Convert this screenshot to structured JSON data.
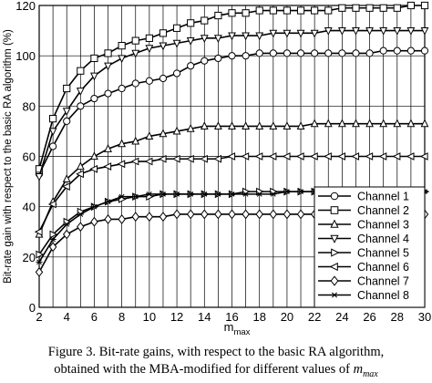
{
  "chart_data": {
    "type": "line",
    "xlabel": "m",
    "xlabel_sub": "max",
    "ylabel": "Bit-rate gain with respect to the basic RA algorithm (%)",
    "xlim": [
      2,
      30
    ],
    "ylim": [
      0,
      120
    ],
    "xticks": [
      "2",
      "4",
      "6",
      "8",
      "10",
      "12",
      "14",
      "16",
      "18",
      "20",
      "22",
      "24",
      "26",
      "28",
      "30"
    ],
    "yticks": [
      "0",
      "20",
      "40",
      "60",
      "80",
      "100",
      "120"
    ],
    "grid": true,
    "legend_position": "bottom-right",
    "series": [
      {
        "name": "Channel 1",
        "marker": "circle",
        "x": [
          2,
          3,
          4,
          5,
          6,
          7,
          8,
          9,
          10,
          11,
          12,
          13,
          14,
          15,
          16,
          17,
          18,
          19,
          20,
          21,
          22,
          23,
          24,
          25,
          26,
          27,
          28,
          29,
          30
        ],
        "values": [
          53,
          64,
          74,
          80,
          83,
          85,
          87,
          89,
          90,
          91,
          93,
          96,
          98,
          99,
          100,
          100,
          101,
          101,
          101,
          101,
          101,
          101,
          101,
          101,
          101,
          102,
          102,
          102,
          102
        ]
      },
      {
        "name": "Channel 2",
        "marker": "square",
        "x": [
          2,
          3,
          4,
          5,
          6,
          7,
          8,
          9,
          10,
          11,
          12,
          13,
          14,
          15,
          16,
          17,
          18,
          19,
          20,
          21,
          22,
          23,
          24,
          25,
          26,
          27,
          28,
          29,
          30
        ],
        "values": [
          55,
          75,
          87,
          94,
          99,
          101,
          104,
          106,
          107,
          109,
          111,
          113,
          114,
          116,
          117,
          117,
          118,
          118,
          118,
          118,
          118,
          118,
          119,
          119,
          119,
          119,
          119,
          120,
          120
        ]
      },
      {
        "name": "Channel 3",
        "marker": "triangle-up",
        "x": [
          2,
          3,
          4,
          5,
          6,
          7,
          8,
          9,
          10,
          11,
          12,
          13,
          14,
          15,
          16,
          17,
          18,
          19,
          20,
          21,
          22,
          23,
          24,
          25,
          26,
          27,
          28,
          29,
          30
        ],
        "values": [
          29,
          42,
          51,
          56,
          60,
          63,
          65,
          66,
          68,
          69,
          70,
          71,
          72,
          72,
          72,
          72,
          72,
          72,
          72,
          72,
          73,
          73,
          73,
          73,
          73,
          73,
          73,
          73,
          73
        ]
      },
      {
        "name": "Channel 4",
        "marker": "triangle-down",
        "x": [
          2,
          3,
          4,
          5,
          6,
          7,
          8,
          9,
          10,
          11,
          12,
          13,
          14,
          15,
          16,
          17,
          18,
          19,
          20,
          21,
          22,
          23,
          24,
          25,
          26,
          27,
          28,
          29,
          30
        ],
        "values": [
          52,
          70,
          78,
          86,
          92,
          96,
          99,
          101,
          103,
          104,
          105,
          106,
          107,
          107,
          108,
          108,
          108,
          109,
          109,
          109,
          109,
          110,
          110,
          110,
          110,
          110,
          110,
          110,
          110
        ]
      },
      {
        "name": "Channel 5",
        "marker": "triangle-right",
        "x": [
          2,
          3,
          4,
          5,
          6,
          7,
          8,
          9,
          10,
          11,
          12,
          13,
          14,
          15,
          16,
          17,
          18,
          19,
          20,
          21,
          22,
          23,
          24,
          25,
          26,
          27,
          28,
          29,
          30
        ],
        "values": [
          21,
          29,
          34,
          38,
          40,
          42,
          43,
          44,
          44,
          45,
          45,
          45,
          45,
          45,
          45,
          46,
          46,
          46,
          46,
          46,
          46,
          46,
          46,
          46,
          46,
          46,
          46,
          46,
          46
        ]
      },
      {
        "name": "Channel 6",
        "marker": "triangle-left",
        "x": [
          2,
          3,
          4,
          5,
          6,
          7,
          8,
          9,
          10,
          11,
          12,
          13,
          14,
          15,
          16,
          17,
          18,
          19,
          20,
          21,
          22,
          23,
          24,
          25,
          26,
          27,
          28,
          29,
          30
        ],
        "values": [
          30,
          41,
          48,
          53,
          55,
          56,
          57,
          58,
          58,
          59,
          59,
          59,
          59,
          59,
          60,
          60,
          60,
          60,
          60,
          60,
          60,
          60,
          60,
          60,
          60,
          60,
          60,
          60,
          60
        ]
      },
      {
        "name": "Channel 7",
        "marker": "diamond",
        "x": [
          2,
          3,
          4,
          5,
          6,
          7,
          8,
          9,
          10,
          11,
          12,
          13,
          14,
          15,
          16,
          17,
          18,
          19,
          20,
          21,
          22,
          23,
          24,
          25,
          26,
          27,
          28,
          29,
          30
        ],
        "values": [
          14,
          24,
          29,
          32,
          34,
          35,
          35,
          36,
          36,
          36,
          37,
          37,
          37,
          37,
          37,
          37,
          37,
          37,
          37,
          37,
          37,
          37,
          37,
          37,
          37,
          37,
          37,
          37,
          37
        ]
      },
      {
        "name": "Channel 8",
        "marker": "star",
        "x": [
          2,
          3,
          4,
          5,
          6,
          7,
          8,
          9,
          10,
          11,
          12,
          13,
          14,
          15,
          16,
          17,
          18,
          19,
          20,
          21,
          22,
          23,
          24,
          25,
          26,
          27,
          28,
          29,
          30
        ],
        "values": [
          18,
          27,
          33,
          37,
          40,
          42,
          44,
          44,
          45,
          45,
          45,
          45,
          45,
          45,
          45,
          45,
          45,
          45,
          46,
          46,
          46,
          46,
          46,
          46,
          46,
          46,
          46,
          46,
          46
        ]
      }
    ]
  },
  "caption": {
    "line1": "Figure 3. Bit-rate gains, with respect to the basic RA algorithm,",
    "line2_text": "obtained with the MBA-modified for different values of ",
    "line2_math": "m",
    "line2_math_sub": "max"
  }
}
